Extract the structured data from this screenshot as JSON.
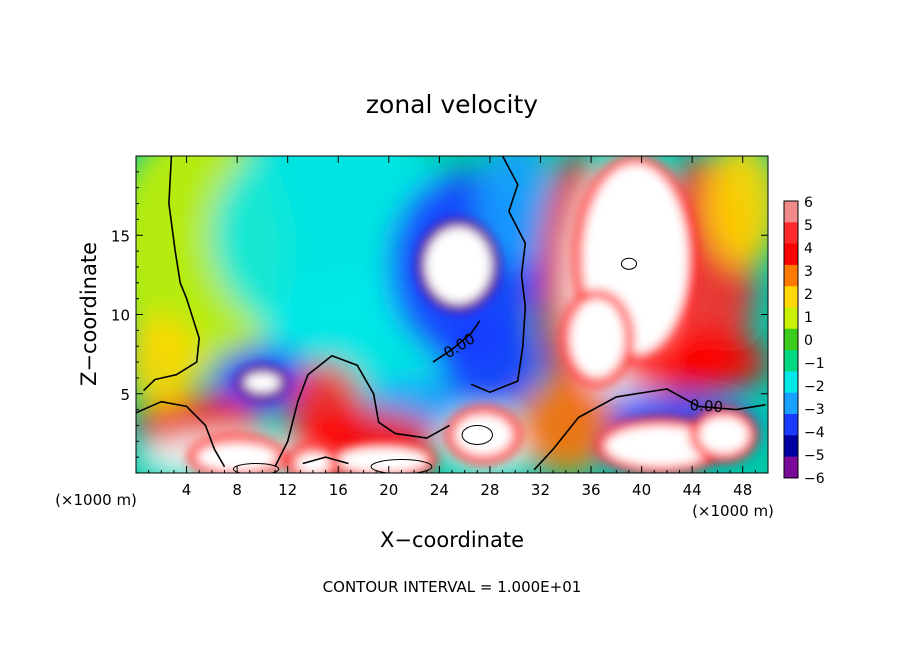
{
  "chart_data": {
    "type": "heatmap",
    "title": "zonal velocity",
    "xlabel": "X−coordinate",
    "ylabel": "Z−coordinate",
    "x_unit_label": "(×1000 m)",
    "y_unit_label": "(×1000 m)",
    "xlim": [
      0,
      50
    ],
    "ylim": [
      0,
      20
    ],
    "x_ticks": [
      4,
      8,
      12,
      16,
      20,
      24,
      28,
      32,
      36,
      40,
      44,
      48
    ],
    "y_ticks": [
      5,
      10,
      15
    ],
    "x_tick_labels": [
      "4",
      "8",
      "12",
      "16",
      "20",
      "24",
      "28",
      "32",
      "36",
      "40",
      "44",
      "48"
    ],
    "y_tick_labels": [
      "5",
      "10",
      "15"
    ],
    "colorbar": {
      "levels": [
        6,
        5,
        4,
        3,
        2,
        1,
        0,
        -1,
        -2,
        -3,
        -4,
        -5,
        -6
      ],
      "labels": [
        "6",
        "5",
        "4",
        "3",
        "2",
        "1",
        "0",
        "−1",
        "−2",
        "−3",
        "−4",
        "−5",
        "−6"
      ],
      "colors": [
        "#f08a8a",
        "#ff2a2a",
        "#ff0000",
        "#ff7a00",
        "#ffd800",
        "#c8f000",
        "#3ccc1c",
        "#00d880",
        "#00e8e8",
        "#1aa0ff",
        "#1a3aff",
        "#0000a0",
        "#7a0a9a"
      ]
    },
    "contour_labels": [
      "0.00",
      "0.00"
    ],
    "footer": "CONTOUR INTERVAL = 1.000E+01",
    "regions": [
      {
        "cx": 5,
        "cy": 14,
        "rx": 7,
        "ry": 8,
        "value": 0.8
      },
      {
        "cx": 16,
        "cy": 15,
        "rx": 10,
        "ry": 7,
        "value": -1.8
      },
      {
        "cx": 20,
        "cy": 9,
        "rx": 10,
        "ry": 4,
        "value": -2.0
      },
      {
        "cx": 26,
        "cy": 13,
        "rx": 6,
        "ry": 6,
        "value": -3.6
      },
      {
        "cx": 28,
        "cy": 7,
        "rx": 4,
        "ry": 3,
        "value": -3.8
      },
      {
        "cx": 30,
        "cy": 17,
        "rx": 3,
        "ry": 4,
        "value": -3.0
      },
      {
        "cx": 10,
        "cy": 6,
        "rx": 4,
        "ry": 2,
        "value": -4.2
      },
      {
        "cx": 22,
        "cy": 4,
        "rx": 4,
        "ry": 2,
        "value": -3.5
      },
      {
        "cx": 35,
        "cy": 12,
        "rx": 3,
        "ry": 8,
        "value": 4.0
      },
      {
        "cx": 39,
        "cy": 12,
        "rx": 5,
        "ry": 8,
        "value": 6.0
      },
      {
        "cx": 45,
        "cy": 13,
        "rx": 4,
        "ry": 7,
        "value": 4.5
      },
      {
        "cx": 48,
        "cy": 17,
        "rx": 3,
        "ry": 4,
        "value": 2.0
      },
      {
        "cx": 44,
        "cy": 7,
        "rx": 6,
        "ry": 2,
        "value": 4.0
      },
      {
        "cx": 40,
        "cy": 3,
        "rx": 9,
        "ry": 2,
        "value": -4.0
      },
      {
        "cx": 15,
        "cy": 4,
        "rx": 3,
        "ry": 3,
        "value": 4.5
      },
      {
        "cx": 5,
        "cy": 3,
        "rx": 5,
        "ry": 2,
        "value": 4.0
      },
      {
        "cx": 8,
        "cy": 1,
        "rx": 8,
        "ry": 1.5,
        "value": 5.5
      },
      {
        "cx": 18,
        "cy": 2,
        "rx": 6,
        "ry": 2,
        "value": 3.5
      },
      {
        "cx": 28,
        "cy": 2,
        "rx": 4,
        "ry": 2,
        "value": 6.0
      },
      {
        "cx": 34,
        "cy": 3,
        "rx": 4,
        "ry": 3,
        "value": 2.5
      },
      {
        "cx": 2,
        "cy": 7,
        "rx": 3,
        "ry": 3,
        "value": 2.0
      }
    ],
    "saturated_patches": [
      {
        "cx": 25.5,
        "cy": 13.1,
        "rx": 2.6,
        "ry": 2.4,
        "value": -6
      },
      {
        "cx": 10.0,
        "cy": 5.7,
        "rx": 1.4,
        "ry": 0.6,
        "value": -6
      },
      {
        "cx": 39.5,
        "cy": 13.5,
        "rx": 4.2,
        "ry": 6.0,
        "value": 6
      },
      {
        "cx": 36.5,
        "cy": 8.5,
        "rx": 2.2,
        "ry": 2.5,
        "value": 6
      },
      {
        "cx": 27.5,
        "cy": 2.4,
        "rx": 2.3,
        "ry": 1.3,
        "value": 6
      },
      {
        "cx": 8.0,
        "cy": 1.0,
        "rx": 3.2,
        "ry": 0.9,
        "value": 6
      },
      {
        "cx": 19.5,
        "cy": 0.8,
        "rx": 3.6,
        "ry": 0.8,
        "value": 6
      },
      {
        "cx": 41.5,
        "cy": 1.7,
        "rx": 4.4,
        "ry": 1.3,
        "value": 6
      },
      {
        "cx": 46.5,
        "cy": 2.4,
        "rx": 2.0,
        "ry": 1.2,
        "value": 6
      },
      {
        "cx": 14.0,
        "cy": 0.6,
        "rx": 1.4,
        "ry": 0.7,
        "value": 6
      }
    ],
    "zero_contours": [
      [
        [
          2.8,
          20
        ],
        [
          2.6,
          17
        ],
        [
          3.1,
          14
        ],
        [
          3.5,
          12
        ],
        [
          4.0,
          11
        ],
        [
          5.0,
          8.5
        ],
        [
          4.8,
          7.0
        ],
        [
          3.2,
          6.2
        ],
        [
          1.5,
          5.9
        ],
        [
          0.6,
          5.2
        ]
      ],
      [
        [
          0.0,
          3.8
        ],
        [
          2.0,
          4.5
        ],
        [
          4.0,
          4.2
        ],
        [
          5.5,
          3.0
        ],
        [
          6.2,
          1.5
        ],
        [
          7.0,
          0.4
        ]
      ],
      [
        [
          11.0,
          0.4
        ],
        [
          12.0,
          2.0
        ],
        [
          12.8,
          4.5
        ],
        [
          13.6,
          6.2
        ],
        [
          15.5,
          7.4
        ],
        [
          17.5,
          6.8
        ],
        [
          18.8,
          5.0
        ],
        [
          19.2,
          3.2
        ],
        [
          20.5,
          2.5
        ],
        [
          23.0,
          2.2
        ],
        [
          24.8,
          3.0
        ]
      ],
      [
        [
          13.2,
          0.6
        ],
        [
          15.0,
          1.0
        ],
        [
          16.8,
          0.6
        ]
      ],
      [
        [
          23.5,
          7.0
        ],
        [
          25.0,
          7.8
        ],
        [
          26.5,
          8.8
        ],
        [
          27.2,
          9.6
        ]
      ],
      [
        [
          29.0,
          20
        ],
        [
          30.2,
          18.2
        ],
        [
          29.5,
          16.5
        ],
        [
          30.8,
          14.5
        ],
        [
          30.5,
          12.5
        ],
        [
          30.8,
          10.5
        ],
        [
          30.6,
          8.0
        ],
        [
          30.2,
          5.8
        ],
        [
          28.0,
          5.1
        ],
        [
          26.5,
          5.6
        ]
      ],
      [
        [
          31.5,
          0.2
        ],
        [
          33.0,
          1.5
        ],
        [
          35.0,
          3.5
        ],
        [
          38.0,
          4.8
        ],
        [
          42.0,
          5.3
        ],
        [
          44.5,
          4.2
        ],
        [
          47.5,
          4.0
        ],
        [
          49.8,
          4.3
        ]
      ]
    ],
    "small_contours": [
      {
        "cx": 27.0,
        "cy": 2.4,
        "rx": 1.2,
        "ry": 0.6
      },
      {
        "cx": 39.0,
        "cy": 13.2,
        "rx": 0.6,
        "ry": 0.35
      },
      {
        "cx": 9.5,
        "cy": 0.25,
        "rx": 1.8,
        "ry": 0.35
      },
      {
        "cx": 21.0,
        "cy": 0.4,
        "rx": 2.4,
        "ry": 0.45
      }
    ]
  }
}
